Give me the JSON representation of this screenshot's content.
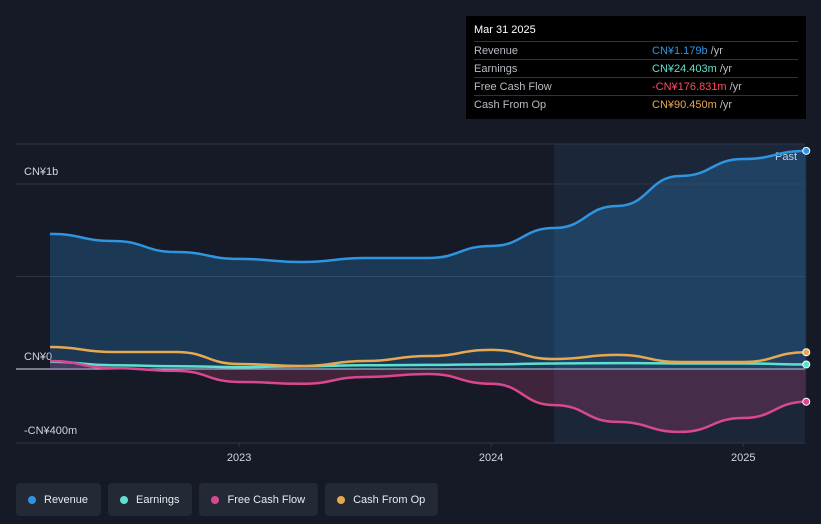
{
  "chart_data": {
    "type": "line",
    "x": [
      2022.25,
      2022.5,
      2022.75,
      2023,
      2023.25,
      2023.5,
      2023.75,
      2024,
      2024.25,
      2024.5,
      2024.75,
      2025,
      2025.25
    ],
    "series": [
      {
        "name": "Revenue",
        "color": "#2f95e0",
        "values": [
          730,
          692,
          632,
          595,
          578,
          600,
          600,
          665,
          762,
          881,
          1043,
          1135,
          1179
        ]
      },
      {
        "name": "Earnings",
        "color": "#5ee0d0",
        "values": [
          40,
          20,
          15,
          10,
          15,
          20,
          22,
          25,
          30,
          32,
          30,
          30,
          24.403
        ]
      },
      {
        "name": "Free Cash Flow",
        "color": "#d9488f",
        "values": [
          43,
          5,
          -10,
          -70,
          -80,
          -43,
          -27,
          -80,
          -195,
          -286,
          -340,
          -265,
          -176.831
        ]
      },
      {
        "name": "Cash From Op",
        "color": "#e8a850",
        "values": [
          119,
          92,
          92,
          27,
          16,
          43,
          70,
          103,
          54,
          76,
          38,
          38,
          90.45
        ]
      }
    ],
    "xlim": [
      2022.115,
      2025.245
    ],
    "xticks": [
      2023,
      2024,
      2025
    ],
    "ylim": [
      -400,
      1216
    ],
    "yticks": [
      {
        "value": -400,
        "label": "-CN¥400m"
      },
      {
        "value": 0,
        "label": "CN¥0"
      },
      {
        "value": 500,
        "label": null
      },
      {
        "value": 1000,
        "label": "CN¥1b"
      }
    ],
    "grid": true,
    "past_start": 2024.25,
    "past_label": "Past",
    "tooltip": {
      "date": "Mar 31 2025",
      "rows": [
        {
          "label": "Revenue",
          "value": "CN¥1.179b",
          "unit": "/yr"
        },
        {
          "label": "Earnings",
          "value": "CN¥24.403m",
          "unit": "/yr"
        },
        {
          "label": "Free Cash Flow",
          "value": "-CN¥176.831m",
          "unit": "/yr"
        },
        {
          "label": "Cash From Op",
          "value": "CN¥90.450m",
          "unit": "/yr"
        }
      ]
    }
  }
}
